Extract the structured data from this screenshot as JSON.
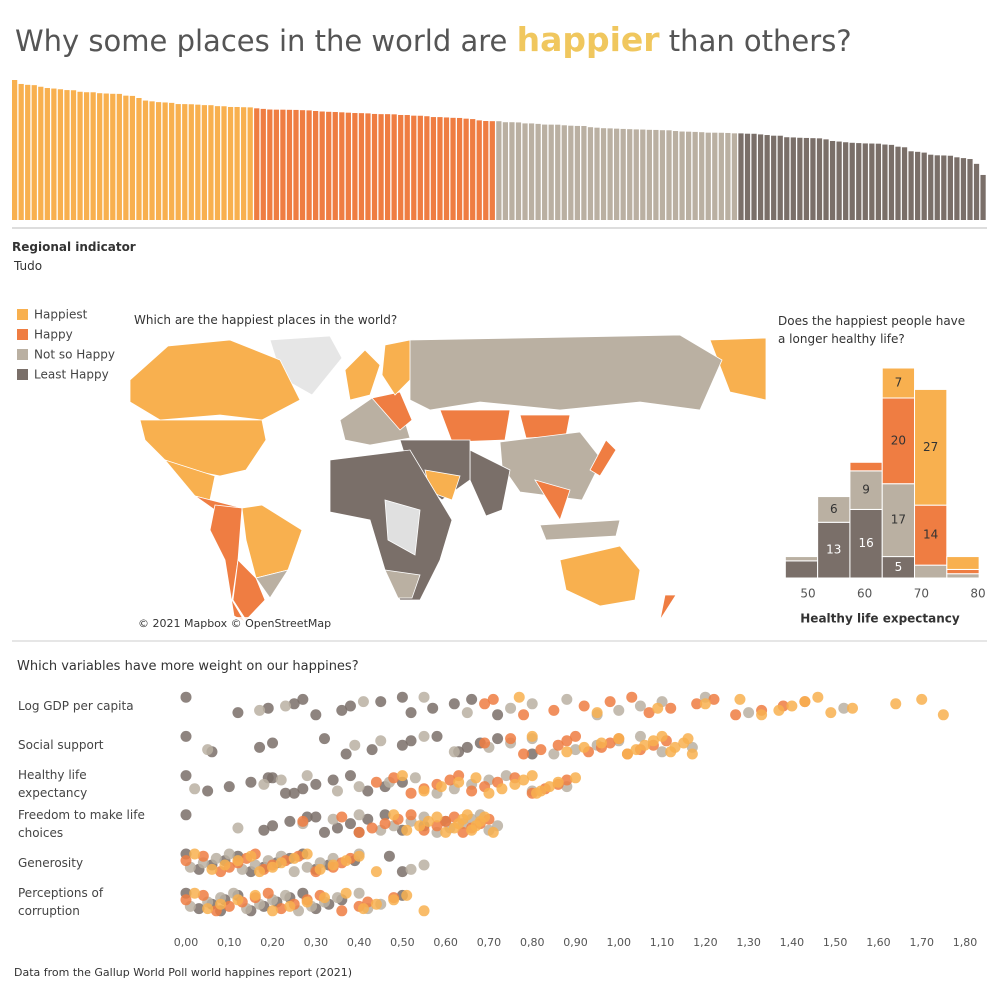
{
  "header": {
    "title_start": "Why some places in the world are ",
    "title_highlight": "happier",
    "title_end": " than others?"
  },
  "filter": {
    "label": "Regional indicator",
    "value": "Tudo"
  },
  "map": {
    "title": "Which are the happiest places in the world?",
    "attribution": "© 2021 Mapbox © OpenStreetMap"
  },
  "footer": "Data from the Gallup World Poll world happines report (2021)",
  "chart_data": [
    {
      "type": "bar",
      "series": [
        {
          "name": "Happiest",
          "color": "#f8b04f",
          "values": [
            7.842,
            7.62,
            7.571,
            7.554,
            7.464,
            7.392,
            7.363,
            7.324,
            7.277,
            7.268,
            7.183,
            7.157,
            7.155,
            7.103,
            7.085,
            7.069,
            7.064,
            6.965,
            6.951,
            6.834,
            6.69,
            6.647,
            6.602,
            6.584,
            6.561,
            6.494,
            6.491,
            6.483,
            6.461,
            6.435,
            6.431,
            6.377,
            6.372,
            6.331,
            6.33,
            6.317,
            6.309
          ]
        },
        {
          "name": "Happy",
          "color": "#ef7d42",
          "values": [
            6.255,
            6.223,
            6.189,
            6.18,
            6.179,
            6.172,
            6.166,
            6.152,
            6.14,
            6.106,
            6.078,
            6.061,
            6.049,
            6.032,
            6.012,
            5.992,
            5.985,
            5.972,
            5.94,
            5.929,
            5.929,
            5.919,
            5.882,
            5.88,
            5.845,
            5.84,
            5.813,
            5.766,
            5.764,
            5.744,
            5.723,
            5.716,
            5.677,
            5.653,
            5.581,
            5.545,
            5.536
          ]
        },
        {
          "name": "Not so Happy",
          "color": "#bab0a2",
          "values": [
            5.534,
            5.477,
            5.477,
            5.466,
            5.411,
            5.41,
            5.384,
            5.345,
            5.342,
            5.339,
            5.306,
            5.283,
            5.269,
            5.266,
            5.198,
            5.171,
            5.142,
            5.132,
            5.117,
            5.101,
            5.088,
            5.074,
            5.066,
            5.051,
            5.045,
            5.03,
            5.025,
            4.984,
            4.956,
            4.948,
            4.934,
            4.918,
            4.892,
            4.891,
            4.887,
            4.875,
            4.854
          ]
        },
        {
          "name": "Least Happy",
          "color": "#7a6f69",
          "values": [
            4.852,
            4.834,
            4.83,
            4.794,
            4.759,
            4.723,
            4.721,
            4.636,
            4.625,
            4.607,
            4.596,
            4.584,
            4.574,
            4.517,
            4.426,
            4.395,
            4.355,
            4.325,
            4.308,
            4.289,
            4.283,
            4.275,
            4.227,
            4.208,
            4.107,
            4.073,
            3.849,
            3.819,
            3.775,
            3.658,
            3.623,
            3.615,
            3.6,
            3.512,
            3.467,
            3.415,
            3.145,
            2.523
          ]
        }
      ]
    },
    {
      "type": "histogram",
      "title": "Does the happiest people have a longer healthy life?",
      "x_label": "Healthy life expectancy",
      "bins": [
        46,
        51.7,
        57.4,
        63.1,
        68.8,
        74.5,
        80.2
      ],
      "xticks": [
        50,
        60,
        70,
        80
      ],
      "series": [
        {
          "values": [
            0,
            0,
            0,
            7,
            27,
            3
          ]
        },
        {
          "values": [
            0,
            0,
            2,
            20,
            14,
            1
          ]
        },
        {
          "values": [
            1,
            6,
            9,
            17,
            3,
            1
          ]
        },
        {
          "values": [
            4,
            13,
            16,
            5,
            0,
            0
          ]
        }
      ]
    },
    {
      "type": "strip",
      "title": "Which variables have more weight on our happines?",
      "categories": [
        "Log GDP per capita",
        "Social support",
        "Healthy life expectancy",
        "Freedom to make life choices",
        "Generosity",
        "Perceptions of corruption"
      ],
      "xlim": [
        0,
        1.8
      ],
      "xticks": [
        {
          "value": 0,
          "label": "0,00"
        },
        {
          "value": 0.1,
          "label": "0,10"
        },
        {
          "value": 0.2,
          "label": "0,20"
        },
        {
          "value": 0.3,
          "label": "0,30"
        },
        {
          "value": 0.4,
          "label": "0,40"
        },
        {
          "value": 0.5,
          "label": "0,50"
        },
        {
          "value": 0.6,
          "label": "0,60"
        },
        {
          "value": 0.7,
          "label": "0,70"
        },
        {
          "value": 0.8,
          "label": "0,80"
        },
        {
          "value": 0.9,
          "label": "0,90"
        },
        {
          "value": 1.0,
          "label": "1,00"
        },
        {
          "value": 1.1,
          "label": "1,10"
        },
        {
          "value": 1.2,
          "label": "1,20"
        },
        {
          "value": 1.3,
          "label": "1,30"
        },
        {
          "value": 1.4,
          "label": "1,40"
        },
        {
          "value": 1.5,
          "label": "1,50"
        },
        {
          "value": 1.6,
          "label": "1,60"
        },
        {
          "value": 1.7,
          "label": "1,70"
        },
        {
          "value": 1.8,
          "label": "1,80"
        }
      ],
      "series": [
        {
          "values": [
            [
              0.77,
              0.95,
              1.09,
              1.2,
              1.28,
              1.33,
              1.37,
              1.4,
              1.43,
              1.46,
              1.49,
              1.54,
              1.64,
              1.7,
              1.75
            ],
            [
              0.8,
              0.88,
              0.92,
              0.96,
              1.0,
              1.02,
              1.04,
              1.06,
              1.08,
              1.1,
              1.12,
              1.13,
              1.15,
              1.16,
              1.17
            ],
            [
              0.5,
              0.55,
              0.59,
              0.63,
              0.67,
              0.7,
              0.73,
              0.76,
              0.78,
              0.8,
              0.82,
              0.84,
              0.86,
              0.9,
              0.81
            ],
            [
              0.48,
              0.51,
              0.54,
              0.56,
              0.58,
              0.6,
              0.62,
              0.63,
              0.64,
              0.65,
              0.66,
              0.67,
              0.68,
              0.69,
              0.71
            ],
            [
              0.02,
              0.06,
              0.09,
              0.12,
              0.15,
              0.17,
              0.2,
              0.22,
              0.25,
              0.28,
              0.31,
              0.34,
              0.37,
              0.4,
              0.44
            ],
            [
              0.02,
              0.05,
              0.08,
              0.12,
              0.16,
              0.2,
              0.24,
              0.28,
              0.32,
              0.37,
              0.41,
              0.44,
              0.48,
              0.51,
              0.55
            ]
          ]
        },
        {
          "values": [
            [
              0.69,
              0.71,
              0.78,
              0.85,
              0.92,
              0.98,
              1.03,
              1.07,
              1.12,
              1.18,
              1.22,
              1.27,
              1.33,
              1.38,
              1.43
            ],
            [
              0.69,
              0.75,
              0.78,
              0.82,
              0.86,
              0.88,
              0.9,
              0.93,
              0.96,
              0.98,
              1.0,
              1.02,
              1.05,
              1.08,
              1.11
            ],
            [
              0.44,
              0.48,
              0.52,
              0.55,
              0.58,
              0.61,
              0.63,
              0.66,
              0.69,
              0.72,
              0.76,
              0.8,
              0.83,
              0.86,
              0.88
            ],
            [
              0.27,
              0.36,
              0.4,
              0.43,
              0.46,
              0.49,
              0.52,
              0.55,
              0.58,
              0.6,
              0.62,
              0.64,
              0.66,
              0.68,
              0.7
            ],
            [
              0.0,
              0.04,
              0.08,
              0.1,
              0.12,
              0.14,
              0.16,
              0.18,
              0.2,
              0.23,
              0.26,
              0.3,
              0.34,
              0.36,
              0.38
            ],
            [
              0.0,
              0.04,
              0.07,
              0.1,
              0.13,
              0.16,
              0.19,
              0.22,
              0.25,
              0.28,
              0.31,
              0.36,
              0.4,
              0.42,
              0.48
            ]
          ]
        },
        {
          "values": [
            [
              0.17,
              0.23,
              0.41,
              0.55,
              0.65,
              0.75,
              0.8,
              0.88,
              0.95,
              1.0,
              1.05,
              1.1,
              1.2,
              1.3,
              1.52
            ],
            [
              0.05,
              0.39,
              0.45,
              0.55,
              0.62,
              0.7,
              0.75,
              0.8,
              0.85,
              0.9,
              0.95,
              1.0,
              1.05,
              1.1,
              1.17
            ],
            [
              0.02,
              0.18,
              0.22,
              0.28,
              0.35,
              0.4,
              0.47,
              0.53,
              0.58,
              0.62,
              0.66,
              0.7,
              0.74,
              0.8,
              0.88
            ],
            [
              0.12,
              0.27,
              0.34,
              0.4,
              0.45,
              0.48,
              0.52,
              0.55,
              0.58,
              0.61,
              0.64,
              0.66,
              0.68,
              0.7,
              0.72
            ],
            [
              0.01,
              0.04,
              0.07,
              0.1,
              0.13,
              0.16,
              0.19,
              0.22,
              0.25,
              0.28,
              0.31,
              0.34,
              0.4,
              0.52,
              0.55
            ],
            [
              0.01,
              0.05,
              0.08,
              0.11,
              0.14,
              0.17,
              0.2,
              0.23,
              0.26,
              0.29,
              0.32,
              0.35,
              0.4,
              0.42,
              0.45
            ]
          ]
        },
        {
          "values": [
            [
              0.0,
              0.12,
              0.19,
              0.25,
              0.27,
              0.3,
              0.36,
              0.38,
              0.45,
              0.5,
              0.52,
              0.57,
              0.62,
              0.66,
              0.72
            ],
            [
              0.0,
              0.06,
              0.17,
              0.2,
              0.32,
              0.37,
              0.43,
              0.5,
              0.52,
              0.58,
              0.63,
              0.65,
              0.68,
              0.72,
              0.8
            ],
            [
              0.0,
              0.05,
              0.1,
              0.15,
              0.19,
              0.23,
              0.27,
              0.3,
              0.34,
              0.38,
              0.42,
              0.46,
              0.5,
              0.2,
              0.25
            ],
            [
              0.0,
              0.18,
              0.2,
              0.24,
              0.28,
              0.32,
              0.35,
              0.38,
              0.42,
              0.46,
              0.5,
              0.55,
              0.6,
              0.3,
              0.4
            ],
            [
              0.0,
              0.03,
              0.06,
              0.09,
              0.12,
              0.15,
              0.18,
              0.21,
              0.24,
              0.27,
              0.3,
              0.33,
              0.39,
              0.47,
              0.5
            ],
            [
              0.0,
              0.03,
              0.06,
              0.09,
              0.12,
              0.15,
              0.18,
              0.21,
              0.24,
              0.27,
              0.3,
              0.33,
              0.36,
              0.5,
              0.08
            ]
          ]
        }
      ]
    }
  ]
}
